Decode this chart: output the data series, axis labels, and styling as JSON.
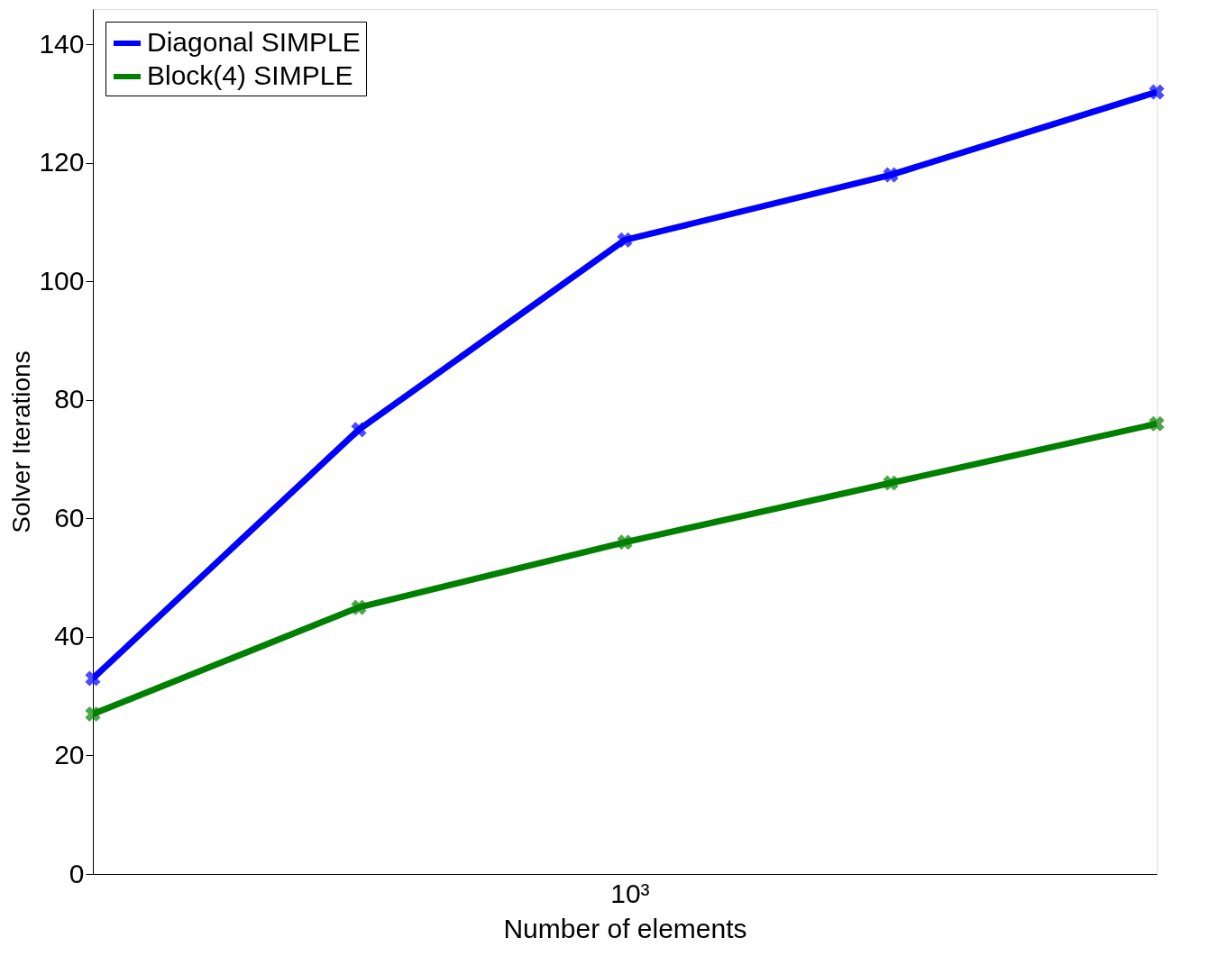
{
  "chart_data": {
    "type": "line",
    "xlabel": "Number of elements",
    "ylabel": "Solver Iterations",
    "categories": [
      null,
      null,
      null,
      null,
      null
    ],
    "series": [
      {
        "name": "Diagonal SIMPLE",
        "color": "#0000ff",
        "values": [
          33,
          75,
          107,
          118,
          132
        ]
      },
      {
        "name": "Block(4) SIMPLE",
        "color": "#008000",
        "values": [
          27,
          45,
          56,
          66,
          76
        ]
      }
    ],
    "annotations": [
      "10³"
    ],
    "ylim": [
      0,
      146
    ],
    "yticks": [
      0,
      20,
      40,
      60,
      80,
      100,
      120,
      140
    ],
    "grid": false,
    "legend": "top left",
    "marker": "cross",
    "line_style": "solid"
  }
}
